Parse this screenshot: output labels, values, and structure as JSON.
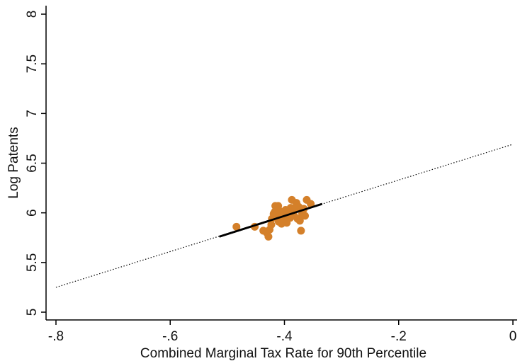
{
  "chart_data": {
    "type": "scatter",
    "title": "",
    "xlabel": "Combined Marginal Tax Rate for 90th Percentile",
    "ylabel": "Log Patents",
    "xlim": [
      -0.82,
      0.01
    ],
    "ylim": [
      4.95,
      8.05
    ],
    "x_ticks": [
      -0.8,
      -0.6,
      -0.4,
      -0.2,
      0
    ],
    "x_tick_labels": [
      "-.8",
      "-.6",
      "-.4",
      "-.2",
      "0"
    ],
    "y_ticks": [
      5,
      5.5,
      6,
      6.5,
      7,
      7.5,
      8
    ],
    "y_tick_labels": [
      "5",
      "5.5",
      "6",
      "6.5",
      "7",
      "7.5",
      "8"
    ],
    "grid": false,
    "legend": "none",
    "marker_color": "#d4802a",
    "fit_color": "#000000",
    "series": [
      {
        "type": "scatter",
        "points": [
          [
            -0.484,
            5.86
          ],
          [
            -0.452,
            5.86
          ],
          [
            -0.437,
            5.82
          ],
          [
            -0.431,
            5.8
          ],
          [
            -0.428,
            5.76
          ],
          [
            -0.426,
            5.83
          ],
          [
            -0.423,
            5.88
          ],
          [
            -0.422,
            5.94
          ],
          [
            -0.419,
            5.99
          ],
          [
            -0.417,
            6.01
          ],
          [
            -0.416,
            6.07
          ],
          [
            -0.414,
            5.97
          ],
          [
            -0.412,
            6.04
          ],
          [
            -0.411,
            6.07
          ],
          [
            -0.41,
            5.91
          ],
          [
            -0.409,
            6.02
          ],
          [
            -0.407,
            5.95
          ],
          [
            -0.405,
            5.89
          ],
          [
            -0.404,
            6.0
          ],
          [
            -0.402,
            5.93
          ],
          [
            -0.4,
            5.97
          ],
          [
            -0.398,
            6.03
          ],
          [
            -0.396,
            5.9
          ],
          [
            -0.394,
            5.99
          ],
          [
            -0.392,
            6.02
          ],
          [
            -0.39,
            5.95
          ],
          [
            -0.389,
            6.05
          ],
          [
            -0.387,
            6.13
          ],
          [
            -0.385,
            6.0
          ],
          [
            -0.383,
            5.97
          ],
          [
            -0.381,
            6.04
          ],
          [
            -0.379,
            6.1
          ],
          [
            -0.377,
            5.94
          ],
          [
            -0.375,
            6.06
          ],
          [
            -0.373,
            5.92
          ],
          [
            -0.371,
            5.82
          ],
          [
            -0.369,
            5.99
          ],
          [
            -0.366,
            6.04
          ],
          [
            -0.364,
            5.97
          ],
          [
            -0.361,
            6.13
          ],
          [
            -0.354,
            6.09
          ]
        ]
      },
      {
        "type": "line",
        "style": "solid",
        "x_range": [
          -0.514,
          -0.334
        ],
        "y_range": [
          5.76,
          6.09
        ]
      },
      {
        "type": "line",
        "style": "dotted",
        "x_range": [
          -0.8,
          0.0
        ],
        "y_range": [
          5.25,
          6.69
        ]
      }
    ]
  }
}
